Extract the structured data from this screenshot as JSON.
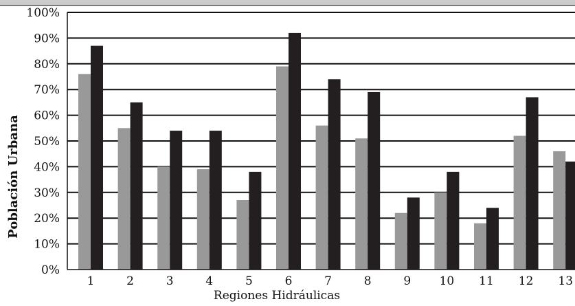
{
  "chart_data": {
    "type": "bar",
    "title": "",
    "xlabel": "Regiones Hidráulicas",
    "ylabel": "Población Urbana",
    "categories": [
      "1",
      "2",
      "3",
      "4",
      "5",
      "6",
      "7",
      "8",
      "9",
      "10",
      "11",
      "12",
      "13"
    ],
    "series": [
      {
        "values": [
          76,
          55,
          40,
          39,
          27,
          79,
          56,
          51,
          22,
          30,
          18,
          52,
          46
        ],
        "color": "#999999"
      },
      {
        "values": [
          87,
          65,
          54,
          54,
          38,
          92,
          74,
          69,
          28,
          38,
          24,
          67,
          42
        ],
        "color": "#231f20"
      }
    ],
    "yticks": [
      "0%",
      "10%",
      "20%",
      "30%",
      "40%",
      "50%",
      "60%",
      "70%",
      "80%",
      "90%",
      "100%"
    ],
    "ylim": [
      0,
      100
    ],
    "grid": true,
    "legend": "none",
    "header_bar_color": "#cccccc"
  }
}
